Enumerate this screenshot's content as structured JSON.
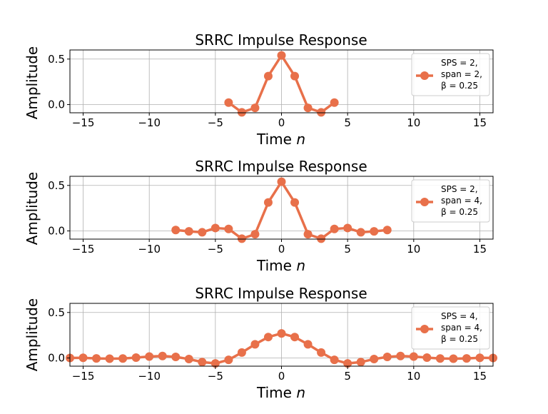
{
  "chart_data": [
    {
      "type": "line",
      "title": "SRRC Impulse Response",
      "xlabel": "Time n",
      "ylabel": "Amplitude",
      "xlim": [
        -16,
        16
      ],
      "ylim": [
        -0.09,
        0.6
      ],
      "xticks": [
        -15,
        -10,
        -5,
        0,
        5,
        10,
        15
      ],
      "xtick_labels": [
        "−15",
        "−10",
        "−5",
        "0",
        "5",
        "10",
        "15"
      ],
      "yticks": [
        0.0,
        0.5
      ],
      "ytick_labels": [
        "0.0",
        "0.5"
      ],
      "grid": true,
      "legend_position": "right",
      "legend": [
        "SPS = 2,",
        "span = 2,",
        "β = 0.25"
      ],
      "color": "#E8704A",
      "series": [
        {
          "name": "SPS = 2, span = 2, β = 0.25",
          "x": [
            -4,
            -3,
            -2,
            -1,
            0,
            1,
            2,
            3,
            4
          ],
          "values": [
            0.022,
            -0.085,
            -0.036,
            0.313,
            0.54,
            0.313,
            -0.036,
            -0.085,
            0.022
          ]
        }
      ]
    },
    {
      "type": "line",
      "title": "SRRC Impulse Response",
      "xlabel": "Time n",
      "ylabel": "Amplitude",
      "xlim": [
        -16,
        16
      ],
      "ylim": [
        -0.09,
        0.6
      ],
      "xticks": [
        -15,
        -10,
        -5,
        0,
        5,
        10,
        15
      ],
      "xtick_labels": [
        "−15",
        "−10",
        "−5",
        "0",
        "5",
        "10",
        "15"
      ],
      "yticks": [
        0.0,
        0.5
      ],
      "ytick_labels": [
        "0.0",
        "0.5"
      ],
      "grid": true,
      "legend_position": "right",
      "legend": [
        "SPS = 2,",
        "span = 4,",
        "β = 0.25"
      ],
      "color": "#E8704A",
      "series": [
        {
          "name": "SPS = 2, span = 4, β = 0.25",
          "x": [
            -8,
            -7,
            -6,
            -5,
            -4,
            -3,
            -2,
            -1,
            0,
            1,
            2,
            3,
            4,
            5,
            6,
            7,
            8
          ],
          "values": [
            0.01,
            -0.005,
            -0.015,
            0.032,
            0.022,
            -0.085,
            -0.036,
            0.313,
            0.54,
            0.313,
            -0.036,
            -0.085,
            0.022,
            0.032,
            -0.015,
            -0.005,
            0.01
          ]
        }
      ]
    },
    {
      "type": "line",
      "title": "SRRC Impulse Response",
      "xlabel": "Time n",
      "ylabel": "Amplitude",
      "xlim": [
        -16,
        16
      ],
      "ylim": [
        -0.09,
        0.6
      ],
      "xticks": [
        -15,
        -10,
        -5,
        0,
        5,
        10,
        15
      ],
      "xtick_labels": [
        "−15",
        "−10",
        "−5",
        "0",
        "5",
        "10",
        "15"
      ],
      "yticks": [
        0.0,
        0.5
      ],
      "ytick_labels": [
        "0.0",
        "0.5"
      ],
      "grid": true,
      "legend_position": "right",
      "legend": [
        "SPS = 4,",
        "span = 4,",
        "β = 0.25"
      ],
      "color": "#E8704A",
      "series": [
        {
          "name": "SPS = 4, span = 4, β = 0.25",
          "x": [
            -16,
            -15,
            -14,
            -13,
            -12,
            -11,
            -10,
            -9,
            -8,
            -7,
            -6,
            -5,
            -4,
            -3,
            -2,
            -1,
            0,
            1,
            2,
            3,
            4,
            5,
            6,
            7,
            8,
            9,
            10,
            11,
            12,
            13,
            14,
            15,
            16
          ],
          "values": [
            0.0,
            0.002,
            -0.005,
            -0.008,
            -0.006,
            0.004,
            0.016,
            0.022,
            0.012,
            -0.012,
            -0.045,
            -0.06,
            -0.02,
            0.06,
            0.15,
            0.23,
            0.27,
            0.23,
            0.15,
            0.06,
            -0.02,
            -0.06,
            -0.045,
            -0.012,
            0.012,
            0.022,
            0.016,
            0.004,
            -0.006,
            -0.008,
            -0.005,
            0.002,
            0.0
          ]
        }
      ]
    }
  ]
}
